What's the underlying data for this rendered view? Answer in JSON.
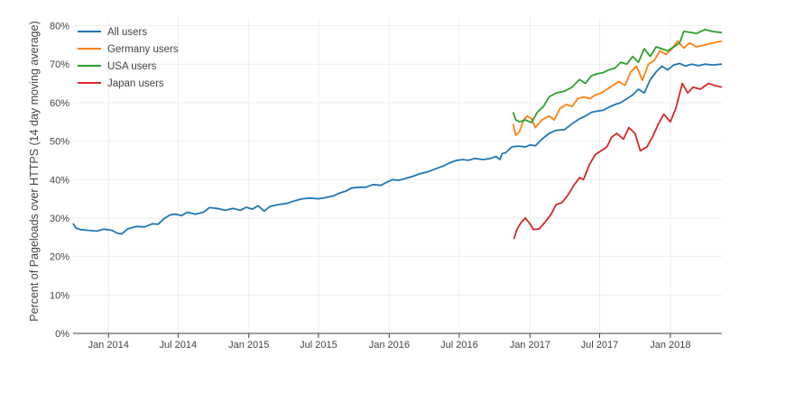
{
  "chart_data": {
    "type": "line",
    "ylabel": "Percent of Pageloads over HTTPS (14 day moving average)",
    "xlabel": "",
    "x_ticks": [
      {
        "date": "2014-01-01",
        "label": "Jan 2014"
      },
      {
        "date": "2014-07-01",
        "label": "Jul 2014"
      },
      {
        "date": "2015-01-01",
        "label": "Jan 2015"
      },
      {
        "date": "2015-07-01",
        "label": "Jul 2015"
      },
      {
        "date": "2016-01-01",
        "label": "Jan 2016"
      },
      {
        "date": "2016-07-01",
        "label": "Jul 2016"
      },
      {
        "date": "2017-01-01",
        "label": "Jan 2017"
      },
      {
        "date": "2017-07-01",
        "label": "Jul 2017"
      },
      {
        "date": "2018-01-01",
        "label": "Jan 2018"
      }
    ],
    "y_ticks": [
      {
        "value": 0,
        "label": "0%"
      },
      {
        "value": 10,
        "label": "10%"
      },
      {
        "value": 20,
        "label": "20%"
      },
      {
        "value": 30,
        "label": "30%"
      },
      {
        "value": 40,
        "label": "40%"
      },
      {
        "value": 50,
        "label": "50%"
      },
      {
        "value": 60,
        "label": "60%"
      },
      {
        "value": 70,
        "label": "70%"
      },
      {
        "value": 80,
        "label": "80%"
      }
    ],
    "xlim": [
      "2013-10-01",
      "2018-05-15"
    ],
    "ylim": [
      0,
      82
    ],
    "grid": true,
    "legend_position": "top-left",
    "series": [
      {
        "name": "All users",
        "color": "#1f77b4",
        "points": [
          [
            "2013-10-01",
            28.6
          ],
          [
            "2013-10-08",
            27.4
          ],
          [
            "2013-10-20",
            27.0
          ],
          [
            "2013-11-10",
            26.8
          ],
          [
            "2013-12-01",
            26.6
          ],
          [
            "2013-12-20",
            27.1
          ],
          [
            "2014-01-10",
            26.8
          ],
          [
            "2014-01-25",
            26.0
          ],
          [
            "2014-02-05",
            25.9
          ],
          [
            "2014-02-20",
            27.2
          ],
          [
            "2014-03-15",
            27.8
          ],
          [
            "2014-04-05",
            27.7
          ],
          [
            "2014-04-25",
            28.5
          ],
          [
            "2014-05-10",
            28.4
          ],
          [
            "2014-05-25",
            29.8
          ],
          [
            "2014-06-10",
            30.8
          ],
          [
            "2014-06-25",
            31.0
          ],
          [
            "2014-07-10",
            30.6
          ],
          [
            "2014-07-25",
            31.5
          ],
          [
            "2014-08-15",
            31.0
          ],
          [
            "2014-09-05",
            31.5
          ],
          [
            "2014-09-20",
            32.7
          ],
          [
            "2014-10-10",
            32.5
          ],
          [
            "2014-11-01",
            32.0
          ],
          [
            "2014-11-20",
            32.5
          ],
          [
            "2014-12-10",
            32.0
          ],
          [
            "2014-12-25",
            32.8
          ],
          [
            "2015-01-10",
            32.3
          ],
          [
            "2015-01-25",
            33.2
          ],
          [
            "2015-02-10",
            31.8
          ],
          [
            "2015-02-25",
            33.0
          ],
          [
            "2015-03-20",
            33.5
          ],
          [
            "2015-04-10",
            33.8
          ],
          [
            "2015-05-01",
            34.5
          ],
          [
            "2015-05-20",
            35.0
          ],
          [
            "2015-06-10",
            35.2
          ],
          [
            "2015-07-01",
            35.0
          ],
          [
            "2015-07-20",
            35.3
          ],
          [
            "2015-08-10",
            35.8
          ],
          [
            "2015-08-25",
            36.5
          ],
          [
            "2015-09-10",
            37.0
          ],
          [
            "2015-09-25",
            37.8
          ],
          [
            "2015-10-15",
            38.0
          ],
          [
            "2015-11-01",
            38.0
          ],
          [
            "2015-11-20",
            38.7
          ],
          [
            "2015-12-10",
            38.5
          ],
          [
            "2015-12-25",
            39.3
          ],
          [
            "2016-01-10",
            40.0
          ],
          [
            "2016-01-25",
            39.8
          ],
          [
            "2016-02-10",
            40.2
          ],
          [
            "2016-03-01",
            40.8
          ],
          [
            "2016-03-20",
            41.5
          ],
          [
            "2016-04-10",
            42.0
          ],
          [
            "2016-05-01",
            42.8
          ],
          [
            "2016-05-20",
            43.5
          ],
          [
            "2016-06-10",
            44.5
          ],
          [
            "2016-06-25",
            45.0
          ],
          [
            "2016-07-10",
            45.2
          ],
          [
            "2016-07-25",
            45.0
          ],
          [
            "2016-08-10",
            45.5
          ],
          [
            "2016-09-01",
            45.2
          ],
          [
            "2016-09-20",
            45.5
          ],
          [
            "2016-10-05",
            46.0
          ],
          [
            "2016-10-15",
            45.2
          ],
          [
            "2016-10-20",
            46.7
          ],
          [
            "2016-10-30",
            47.0
          ],
          [
            "2016-11-15",
            48.5
          ],
          [
            "2016-12-01",
            48.7
          ],
          [
            "2016-12-20",
            48.5
          ],
          [
            "2017-01-01",
            49.0
          ],
          [
            "2017-01-15",
            48.8
          ],
          [
            "2017-02-01",
            50.5
          ],
          [
            "2017-02-20",
            52.0
          ],
          [
            "2017-03-10",
            52.8
          ],
          [
            "2017-04-01",
            53.0
          ],
          [
            "2017-04-20",
            54.5
          ],
          [
            "2017-05-10",
            55.8
          ],
          [
            "2017-05-25",
            56.5
          ],
          [
            "2017-06-10",
            57.5
          ],
          [
            "2017-06-25",
            57.8
          ],
          [
            "2017-07-10",
            58.0
          ],
          [
            "2017-07-25",
            58.8
          ],
          [
            "2017-08-10",
            59.5
          ],
          [
            "2017-08-25",
            60.0
          ],
          [
            "2017-09-10",
            61.0
          ],
          [
            "2017-09-25",
            62.0
          ],
          [
            "2017-10-10",
            63.5
          ],
          [
            "2017-10-25",
            62.5
          ],
          [
            "2017-11-10",
            66.0
          ],
          [
            "2017-11-25",
            68.0
          ],
          [
            "2017-12-10",
            69.5
          ],
          [
            "2017-12-25",
            68.5
          ],
          [
            "2018-01-10",
            69.8
          ],
          [
            "2018-01-25",
            70.2
          ],
          [
            "2018-02-10",
            69.5
          ],
          [
            "2018-02-25",
            70.0
          ],
          [
            "2018-03-15",
            69.6
          ],
          [
            "2018-04-01",
            70.0
          ],
          [
            "2018-04-20",
            69.8
          ],
          [
            "2018-05-15",
            70.0
          ]
        ]
      },
      {
        "name": "Germany users",
        "color": "#ff7f0e",
        "points": [
          [
            "2016-11-18",
            54.5
          ],
          [
            "2016-11-25",
            51.5
          ],
          [
            "2016-12-05",
            52.5
          ],
          [
            "2016-12-15",
            55.5
          ],
          [
            "2016-12-25",
            56.5
          ],
          [
            "2017-01-05",
            55.8
          ],
          [
            "2017-01-15",
            53.5
          ],
          [
            "2017-02-01",
            55.5
          ],
          [
            "2017-02-20",
            56.5
          ],
          [
            "2017-03-05",
            55.5
          ],
          [
            "2017-03-20",
            58.5
          ],
          [
            "2017-04-05",
            59.5
          ],
          [
            "2017-04-20",
            59.0
          ],
          [
            "2017-05-05",
            61.0
          ],
          [
            "2017-05-20",
            61.5
          ],
          [
            "2017-06-05",
            61.0
          ],
          [
            "2017-06-20",
            62.0
          ],
          [
            "2017-07-05",
            62.5
          ],
          [
            "2017-07-20",
            63.5
          ],
          [
            "2017-08-05",
            64.5
          ],
          [
            "2017-08-20",
            65.5
          ],
          [
            "2017-09-05",
            64.5
          ],
          [
            "2017-09-20",
            68.0
          ],
          [
            "2017-10-05",
            69.5
          ],
          [
            "2017-10-20",
            65.8
          ],
          [
            "2017-11-05",
            70.0
          ],
          [
            "2017-11-20",
            71.0
          ],
          [
            "2017-12-05",
            73.5
          ],
          [
            "2017-12-20",
            72.5
          ],
          [
            "2018-01-05",
            74.0
          ],
          [
            "2018-01-20",
            76.0
          ],
          [
            "2018-02-05",
            74.2
          ],
          [
            "2018-02-20",
            75.5
          ],
          [
            "2018-03-10",
            74.5
          ],
          [
            "2018-04-01",
            75.0
          ],
          [
            "2018-04-20",
            75.5
          ],
          [
            "2018-05-15",
            76.0
          ]
        ]
      },
      {
        "name": "USA users",
        "color": "#2ca02c",
        "points": [
          [
            "2016-11-18",
            57.5
          ],
          [
            "2016-11-25",
            55.5
          ],
          [
            "2016-12-05",
            55.0
          ],
          [
            "2016-12-20",
            55.5
          ],
          [
            "2017-01-05",
            54.8
          ],
          [
            "2017-01-20",
            57.5
          ],
          [
            "2017-02-05",
            59.0
          ],
          [
            "2017-02-20",
            61.5
          ],
          [
            "2017-03-10",
            62.5
          ],
          [
            "2017-04-01",
            63.0
          ],
          [
            "2017-04-20",
            64.0
          ],
          [
            "2017-05-10",
            66.0
          ],
          [
            "2017-05-25",
            65.0
          ],
          [
            "2017-06-10",
            67.0
          ],
          [
            "2017-06-25",
            67.5
          ],
          [
            "2017-07-10",
            67.8
          ],
          [
            "2017-07-25",
            68.5
          ],
          [
            "2017-08-10",
            69.0
          ],
          [
            "2017-08-25",
            70.5
          ],
          [
            "2017-09-10",
            70.0
          ],
          [
            "2017-09-25",
            72.0
          ],
          [
            "2017-10-10",
            70.5
          ],
          [
            "2017-10-25",
            74.0
          ],
          [
            "2017-11-10",
            72.0
          ],
          [
            "2017-11-25",
            74.5
          ],
          [
            "2017-12-10",
            74.0
          ],
          [
            "2017-12-25",
            73.5
          ],
          [
            "2018-01-10",
            74.5
          ],
          [
            "2018-01-25",
            75.5
          ],
          [
            "2018-02-05",
            78.5
          ],
          [
            "2018-02-20",
            78.3
          ],
          [
            "2018-03-10",
            78.0
          ],
          [
            "2018-04-01",
            79.0
          ],
          [
            "2018-04-20",
            78.5
          ],
          [
            "2018-05-15",
            78.2
          ]
        ]
      },
      {
        "name": "Japan users",
        "color": "#d62728",
        "points": [
          [
            "2016-11-20",
            24.5
          ],
          [
            "2016-11-28",
            27.0
          ],
          [
            "2016-12-10",
            29.0
          ],
          [
            "2016-12-20",
            30.0
          ],
          [
            "2017-01-01",
            28.5
          ],
          [
            "2017-01-10",
            27.0
          ],
          [
            "2017-01-25",
            27.2
          ],
          [
            "2017-02-10",
            29.0
          ],
          [
            "2017-02-25",
            31.0
          ],
          [
            "2017-03-10",
            33.5
          ],
          [
            "2017-03-25",
            34.0
          ],
          [
            "2017-04-10",
            36.0
          ],
          [
            "2017-04-25",
            38.5
          ],
          [
            "2017-05-10",
            40.5
          ],
          [
            "2017-05-20",
            40.0
          ],
          [
            "2017-06-05",
            44.0
          ],
          [
            "2017-06-20",
            46.5
          ],
          [
            "2017-07-05",
            47.5
          ],
          [
            "2017-07-20",
            48.5
          ],
          [
            "2017-08-01",
            51.0
          ],
          [
            "2017-08-15",
            52.0
          ],
          [
            "2017-09-01",
            50.5
          ],
          [
            "2017-09-15",
            53.5
          ],
          [
            "2017-10-01",
            52.0
          ],
          [
            "2017-10-15",
            47.5
          ],
          [
            "2017-11-01",
            48.5
          ],
          [
            "2017-11-15",
            51.0
          ],
          [
            "2017-12-01",
            54.5
          ],
          [
            "2017-12-15",
            57.0
          ],
          [
            "2018-01-01",
            55.0
          ],
          [
            "2018-01-15",
            58.5
          ],
          [
            "2018-02-01",
            65.0
          ],
          [
            "2018-02-15",
            62.5
          ],
          [
            "2018-03-01",
            64.0
          ],
          [
            "2018-03-20",
            63.5
          ],
          [
            "2018-04-10",
            65.0
          ],
          [
            "2018-04-25",
            64.5
          ],
          [
            "2018-05-15",
            64.0
          ]
        ]
      }
    ]
  }
}
